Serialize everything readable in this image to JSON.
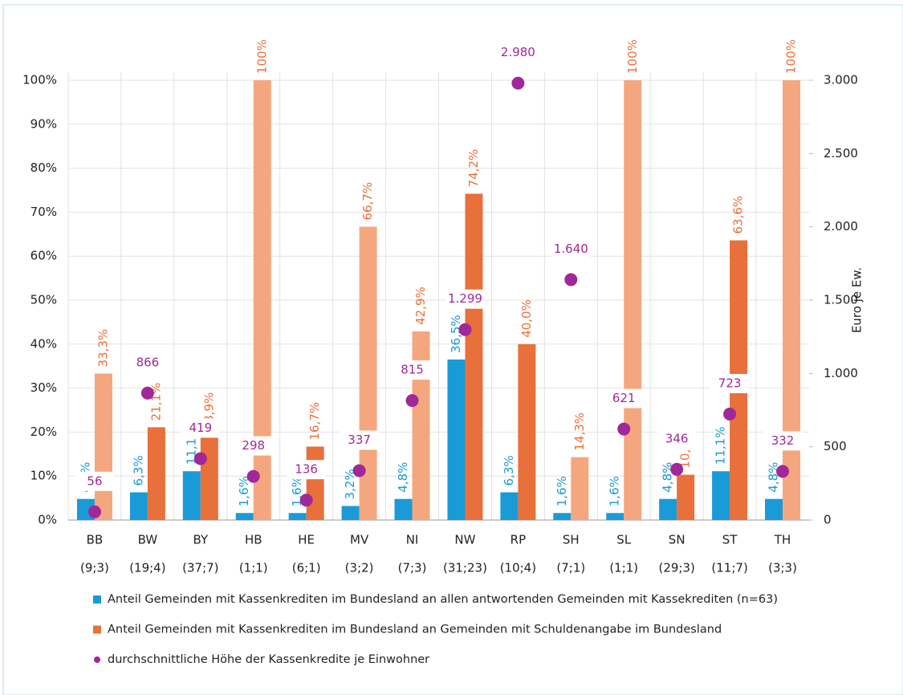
{
  "chart_data": {
    "type": "bar",
    "categories": [
      "BB",
      "BW",
      "BY",
      "HB",
      "HE",
      "MV",
      "NI",
      "NW",
      "RP",
      "SH",
      "SL",
      "SN",
      "ST",
      "TH"
    ],
    "category_counts": [
      "(9;3)",
      "(19;4)",
      "(37;7)",
      "(1;1)",
      "(6;1)",
      "(3;2)",
      "(7;3)",
      "(31;23)",
      "(10;4)",
      "(7;1)",
      "(1;1)",
      "(29;3)",
      "(11;7)",
      "(3;3)"
    ],
    "series": [
      {
        "name": "Anteil Gemeinden mit Kassenkrediten im Bundesland an allen antwortenden Gemeinden mit Kassekrediten (n=63)",
        "color": "#1a9ad6",
        "values": [
          4.8,
          6.3,
          11.1,
          1.6,
          1.6,
          3.2,
          4.8,
          36.5,
          6.3,
          1.6,
          1.6,
          4.8,
          11.1,
          4.8
        ],
        "value_labels": [
          "4,8%",
          "6,3%",
          "11,1%",
          "1,6%",
          "1,6%",
          "3,2%",
          "4,8%",
          "36,5%",
          "6,3%",
          "1,6%",
          "1,6%",
          "4,8%",
          "11,1%",
          "4,8%"
        ]
      },
      {
        "name": "Anteil Gemeinden mit Kassenkrediten im Bundesland an Gemeinden mit Schuldenangabe im Bundesland",
        "color": "#e8703a",
        "colors": [
          "#f4a77e",
          "#e8703a",
          "#e8703a",
          "#f4a77e",
          "#e8703a",
          "#f4a77e",
          "#f4a77e",
          "#e8703a",
          "#e8703a",
          "#f4a77e",
          "#f4a77e",
          "#e8703a",
          "#e8703a",
          "#f4a77e"
        ],
        "values": [
          33.3,
          21.1,
          18.9,
          100,
          16.7,
          66.7,
          42.9,
          74.2,
          40.0,
          14.3,
          100,
          10.3,
          63.6,
          100
        ],
        "value_labels": [
          "33,3%",
          "21,1%",
          "18,9%",
          "100%",
          "16,7%",
          "66,7%",
          "42,9%",
          "74,2%",
          "40,0%",
          "14,3%",
          "100%",
          "10,3%",
          "63,6%",
          "100%"
        ]
      },
      {
        "name": "durchschnittliche Höhe der Kassenkredite je Einwohner",
        "color": "#a0289a",
        "axis": "y2",
        "values": [
          56,
          866,
          419,
          298,
          136,
          337,
          815,
          1299,
          2980,
          1640,
          621,
          346,
          723,
          332
        ],
        "value_labels": [
          "56",
          "866",
          "419",
          "298",
          "136",
          "337",
          "815",
          "1.299",
          "2.980",
          "1.640",
          "621",
          "346",
          "723",
          "332"
        ]
      }
    ],
    "ylim": [
      0,
      100
    ],
    "yticks": [
      {
        "value": 0,
        "label": "0%"
      },
      {
        "value": 10,
        "label": "10%"
      },
      {
        "value": 20,
        "label": "20%"
      },
      {
        "value": 30,
        "label": "30%"
      },
      {
        "value": 40,
        "label": "40%"
      },
      {
        "value": 50,
        "label": "50%"
      },
      {
        "value": 60,
        "label": "60%"
      },
      {
        "value": 70,
        "label": "70%"
      },
      {
        "value": 80,
        "label": "80%"
      },
      {
        "value": 90,
        "label": "90%"
      },
      {
        "value": 100,
        "label": "100%"
      }
    ],
    "y2lim": [
      0,
      3000
    ],
    "y2ticks": [
      0,
      500,
      {
        "value": 1000,
        "label": "1.000"
      },
      {
        "value": 1500,
        "label": "1.500"
      },
      {
        "value": 2000,
        "label": "2.000"
      },
      {
        "value": 2500,
        "label": "2.500"
      },
      {
        "value": 3000,
        "label": "3.000"
      }
    ],
    "y2label": "Euro je Ew.",
    "grid": true
  }
}
